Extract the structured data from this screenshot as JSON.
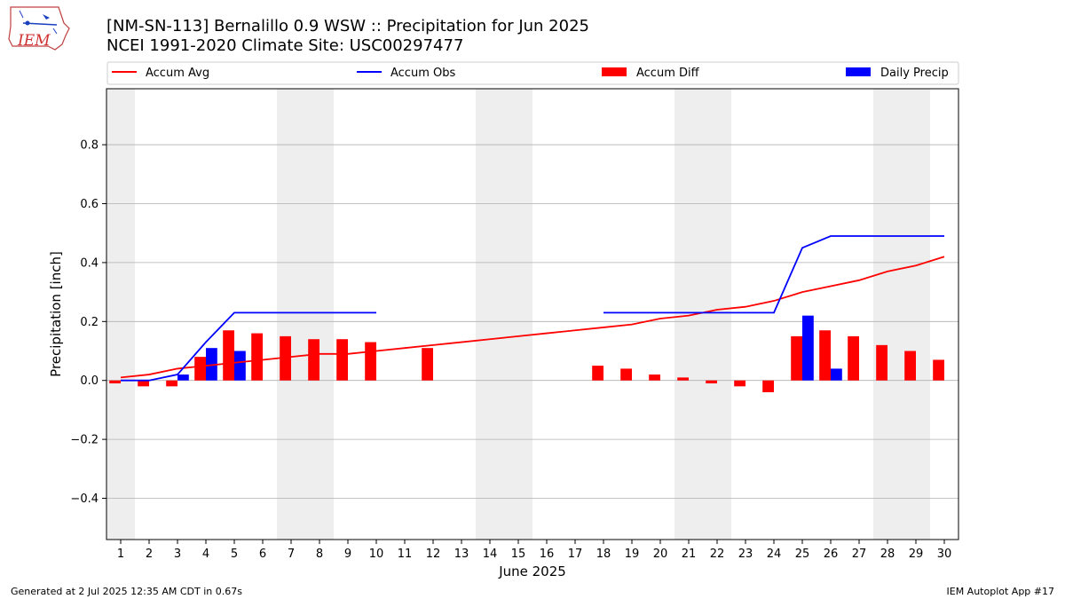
{
  "logo_text": "IEM",
  "title_line1": "[NM-SN-113] Bernalillo 0.9 WSW :: Precipitation for Jun 2025",
  "title_line2": "NCEI 1991-2020 Climate Site: USC00297477",
  "footer_left": "Generated at 2 Jul 2025 12:35 AM CDT in 0.67s",
  "footer_right": "IEM Autoplot App #17",
  "colors": {
    "accum_avg": "#ff0000",
    "accum_obs": "#0000ff",
    "accum_diff": "#ff0000",
    "daily_precip": "#0000ff",
    "weekend_shade": "#eeeeee",
    "grid": "#b0b0b0"
  },
  "chart_data": {
    "type": "bar",
    "xlabel": "June 2025",
    "ylabel": "Precipitation [inch]",
    "xlim": [
      0.5,
      30.5
    ],
    "ylim": [
      -0.54,
      0.99
    ],
    "yticks": [
      -0.4,
      -0.2,
      0.0,
      0.2,
      0.4,
      0.6,
      0.8
    ],
    "ytick_labels": [
      "−0.4",
      "−0.2",
      "0.0",
      "0.2",
      "0.4",
      "0.6",
      "0.8"
    ],
    "x": [
      1,
      2,
      3,
      4,
      5,
      6,
      7,
      8,
      9,
      10,
      11,
      12,
      13,
      14,
      15,
      16,
      17,
      18,
      19,
      20,
      21,
      22,
      23,
      24,
      25,
      26,
      27,
      28,
      29,
      30
    ],
    "grid": true,
    "legend_placement": "top",
    "weekend_days": [
      1,
      7,
      8,
      14,
      15,
      21,
      22,
      28,
      29
    ],
    "series": [
      {
        "name": "Accum Avg",
        "kind": "line",
        "values": [
          0.01,
          0.02,
          0.04,
          0.05,
          0.06,
          0.07,
          0.08,
          0.09,
          0.09,
          0.1,
          0.11,
          0.12,
          0.13,
          0.14,
          0.15,
          0.16,
          0.17,
          0.18,
          0.19,
          0.21,
          0.22,
          0.24,
          0.25,
          0.27,
          0.3,
          0.32,
          0.34,
          0.37,
          0.39,
          0.42
        ]
      },
      {
        "name": "Accum Obs",
        "kind": "line",
        "values": [
          0.0,
          0.0,
          0.02,
          0.13,
          0.23,
          0.23,
          0.23,
          0.23,
          0.23,
          0.23,
          null,
          null,
          null,
          null,
          null,
          null,
          null,
          0.23,
          0.23,
          0.23,
          0.23,
          0.23,
          0.23,
          0.23,
          0.45,
          0.49,
          0.49,
          0.49,
          0.49,
          0.49
        ]
      },
      {
        "name": "Accum Diff",
        "kind": "bar",
        "values": [
          -0.01,
          -0.02,
          -0.02,
          0.08,
          0.17,
          0.16,
          0.15,
          0.14,
          0.14,
          0.13,
          null,
          0.11,
          null,
          null,
          null,
          null,
          null,
          0.05,
          0.04,
          0.02,
          0.01,
          -0.01,
          -0.02,
          -0.04,
          0.15,
          0.17,
          0.15,
          0.12,
          0.1,
          0.07
        ]
      },
      {
        "name": "Daily Precip",
        "kind": "bar",
        "values": [
          0,
          0,
          0.02,
          0.11,
          0.1,
          0,
          0,
          0,
          0,
          0,
          0,
          0,
          0,
          0,
          0,
          0,
          0,
          0,
          0,
          0,
          0,
          0,
          0,
          0,
          0.22,
          0.04,
          0,
          0,
          0,
          0
        ]
      }
    ]
  }
}
